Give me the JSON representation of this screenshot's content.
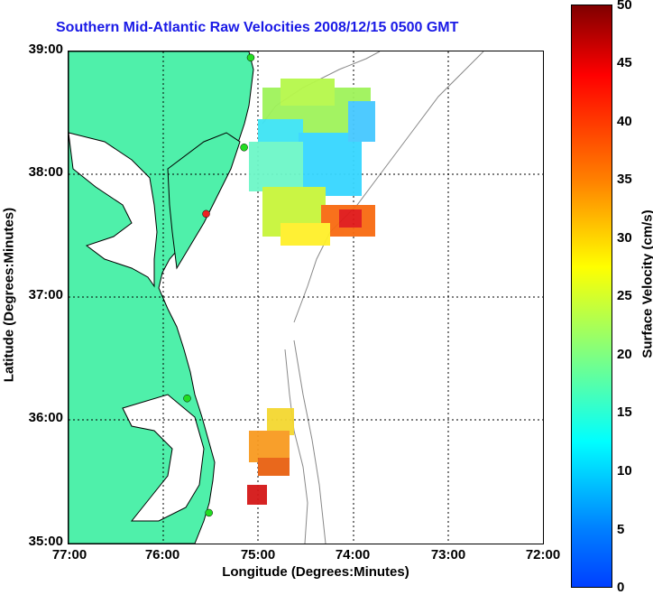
{
  "title": "Southern Mid-Atlantic Raw Velocities 2008/12/15 0500 GMT",
  "x_axis": {
    "label": "Longitude (Degrees:Minutes)",
    "ticks": [
      "77:00",
      "76:00",
      "75:00",
      "74:00",
      "73:00",
      "72:00"
    ]
  },
  "y_axis": {
    "label": "Latitude (Degrees:Minutes)",
    "ticks": [
      "39:00",
      "38:00",
      "37:00",
      "36:00",
      "35:00"
    ]
  },
  "colorbar": {
    "label": "Surface Velocity (cm/s)",
    "ticks": [
      "50",
      "45",
      "40",
      "35",
      "30",
      "25",
      "20",
      "15",
      "10",
      "5",
      "0"
    ],
    "range": [
      0,
      50
    ],
    "colormap": "jet"
  },
  "colors": {
    "land": "#4ff0aa",
    "title": "#1a1ae6",
    "coast": "#000000",
    "bathymetry": "#888888"
  },
  "chart_data": {
    "type": "heatmap",
    "xlim": [
      -77,
      -72
    ],
    "ylim": [
      35,
      39
    ],
    "grid": true,
    "stations": [
      {
        "name": "",
        "lon": -75.08,
        "lat": 38.95,
        "color": "#22dd22"
      },
      {
        "name": "",
        "lon": -75.15,
        "lat": 38.22,
        "color": "#22dd22"
      },
      {
        "name": "",
        "lon": -75.55,
        "lat": 37.68,
        "color": "#ee2222"
      },
      {
        "name": "",
        "lon": -75.75,
        "lat": 36.18,
        "color": "#22dd22"
      },
      {
        "name": "",
        "lon": -75.52,
        "lat": 35.25,
        "color": "#22dd22"
      }
    ]
  }
}
